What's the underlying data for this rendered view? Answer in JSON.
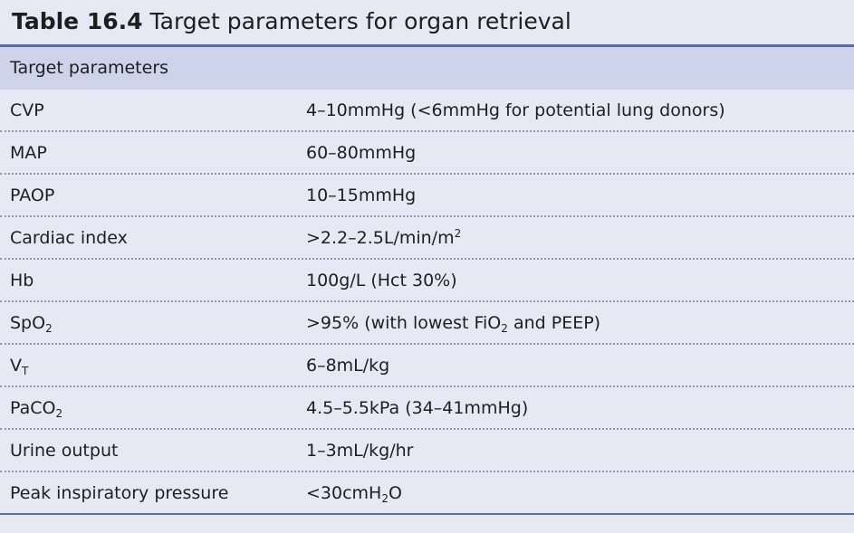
{
  "table": {
    "label": "Table 16.4",
    "title": "Target parameters for organ retrieval",
    "header": "Target parameters",
    "rows": [
      {
        "param": "CVP",
        "value": "4–10mmHg (<6mmHg for potential lung donors)"
      },
      {
        "param": "MAP",
        "value": "60–80mmHg"
      },
      {
        "param": "PAOP",
        "value": "10–15mmHg"
      },
      {
        "param": "Cardiac index",
        "value_main": ">2.2–2.5L/min/m",
        "value_sup": "2"
      },
      {
        "param": "Hb",
        "value": "100g/L (Hct 30%)"
      },
      {
        "param_main": "SpO",
        "param_sub": "2",
        "value_a": ">95% (with lowest FiO",
        "value_sub": "2",
        "value_b": " and PEEP)"
      },
      {
        "param_main": "V",
        "param_sub": "T",
        "value": "6–8mL/kg"
      },
      {
        "param_main": "PaCO",
        "param_sub": "2",
        "value": "4.5–5.5kPa (34–41mmHg)"
      },
      {
        "param": "Urine output",
        "value": "1–3mL/kg/hr"
      },
      {
        "param": "Peak inspiratory pressure",
        "value_a": "<30cmH",
        "value_sub": "2",
        "value_b": "O"
      }
    ]
  },
  "colors": {
    "title_background": "#e6e9f4",
    "header_background": "#ccd3ea",
    "rule": "#5a6aa8"
  }
}
